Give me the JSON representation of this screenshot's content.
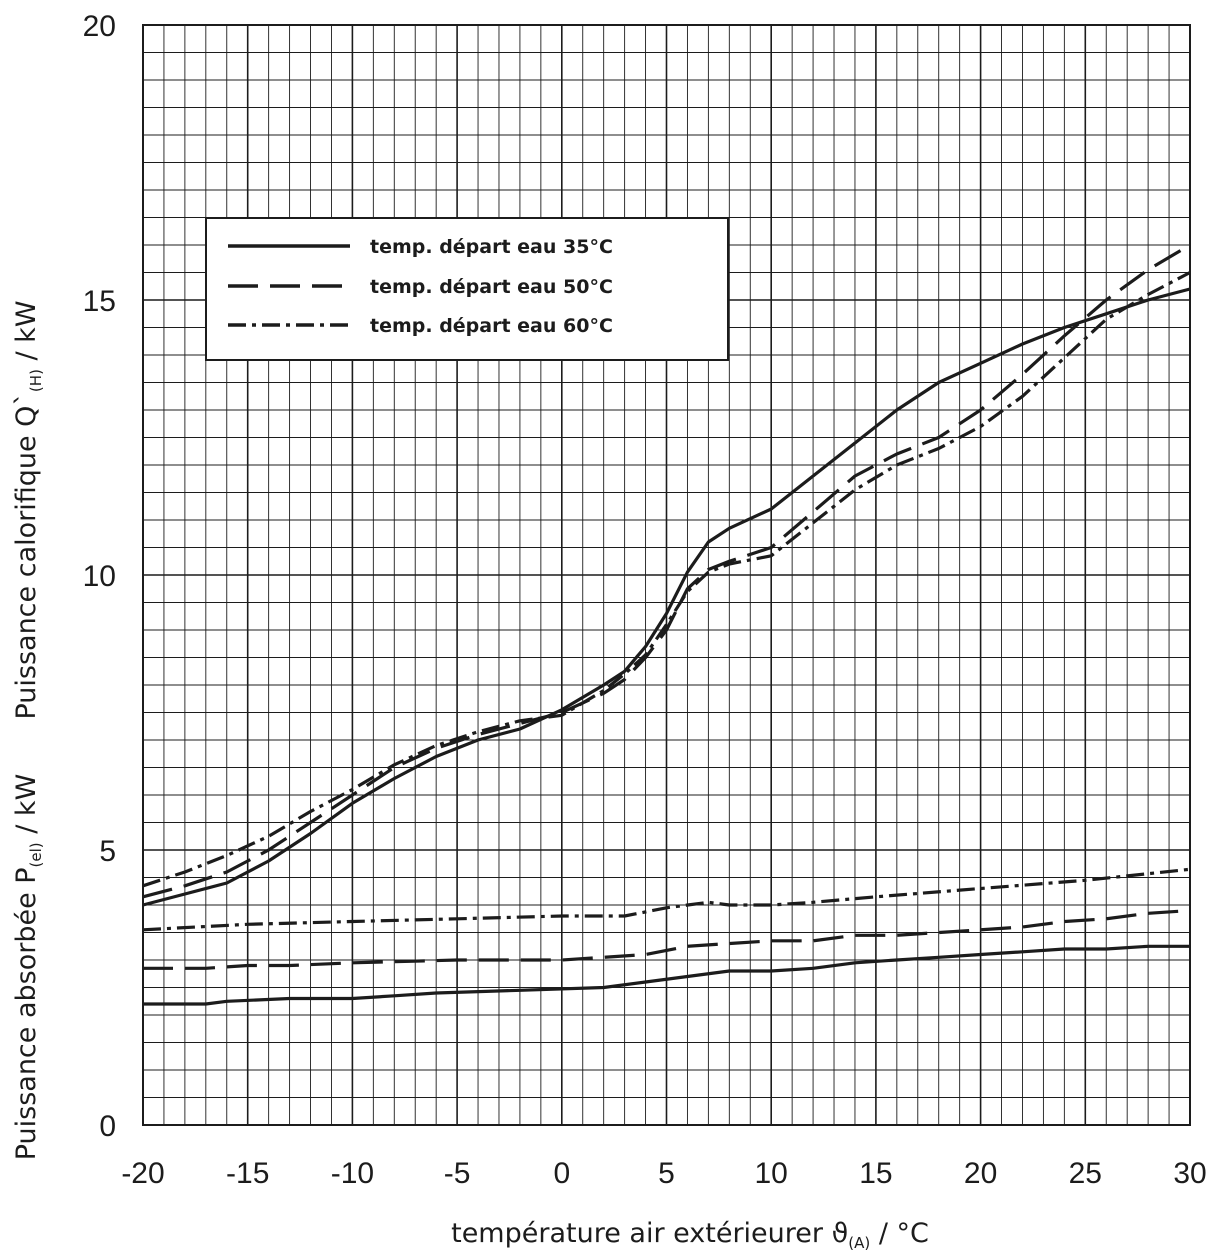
{
  "chart_data": {
    "type": "line",
    "xlabel": {
      "main": "température air extérieurer ϑ",
      "sub": "(A)",
      "unit": " / °C"
    },
    "ylabel_top": {
      "main": "Puissance calorifique  Q`",
      "sub": "(H)",
      "unit": "  / kW"
    },
    "ylabel_bottom": {
      "main": "Puissance absorbée P",
      "sub": "(el)",
      "unit": "  / kW"
    },
    "xlim": [
      -20,
      30
    ],
    "ylim": [
      0,
      20
    ],
    "x_ticks": [
      "-20",
      "-15",
      "-10",
      "-5",
      "0",
      "5",
      "10",
      "15",
      "20",
      "25",
      "30"
    ],
    "y_ticks": [
      "0",
      "5",
      "10",
      "15",
      "20"
    ],
    "grid": true,
    "legend_position": "upper-left",
    "legend": [
      {
        "name": "temp. départ eau 35°C",
        "style": "solid"
      },
      {
        "name": "temp. départ eau 50°C",
        "style": "dashed"
      },
      {
        "name": "temp. départ eau 60°C",
        "style": "dashdot"
      }
    ],
    "series": [
      {
        "name": "temp. départ eau 35°C",
        "group": "heating",
        "style": "solid",
        "x": [
          -20,
          -18,
          -16,
          -14,
          -12,
          -10,
          -8,
          -6,
          -4,
          -2,
          0,
          2,
          3,
          4,
          5,
          6,
          7,
          8,
          10,
          12,
          14,
          16,
          18,
          20,
          22,
          24,
          26,
          28,
          30
        ],
        "y": [
          4.0,
          4.2,
          4.4,
          4.8,
          5.3,
          5.85,
          6.3,
          6.7,
          7.0,
          7.2,
          7.55,
          8.0,
          8.25,
          8.7,
          9.3,
          10.05,
          10.6,
          10.85,
          11.2,
          11.8,
          12.4,
          13.0,
          13.5,
          13.85,
          14.2,
          14.5,
          14.75,
          15.0,
          15.2
        ]
      },
      {
        "name": "temp. départ eau 50°C",
        "group": "heating",
        "style": "dashed",
        "x": [
          -20,
          -18,
          -16,
          -14,
          -12,
          -10,
          -8,
          -6,
          -4,
          -2,
          0,
          2,
          3,
          4,
          5,
          6,
          7,
          8,
          10,
          12,
          14,
          16,
          18,
          20,
          22,
          24,
          26,
          28,
          30
        ],
        "y": [
          4.15,
          4.35,
          4.6,
          5.0,
          5.5,
          6.0,
          6.5,
          6.85,
          7.1,
          7.3,
          7.5,
          7.85,
          8.1,
          8.5,
          9.0,
          9.75,
          10.1,
          10.25,
          10.5,
          11.15,
          11.8,
          12.2,
          12.5,
          13.0,
          13.65,
          14.35,
          15.0,
          15.55,
          16.0
        ]
      },
      {
        "name": "temp. départ eau 60°C",
        "group": "heating",
        "style": "dashdot",
        "x": [
          -20,
          -18,
          -16,
          -14,
          -12,
          -10,
          -8,
          -6,
          -4,
          -2,
          0,
          2,
          3,
          4,
          5,
          6,
          7,
          8,
          10,
          12,
          14,
          16,
          18,
          20,
          22,
          24,
          26,
          28,
          30
        ],
        "y": [
          4.35,
          4.6,
          4.9,
          5.25,
          5.7,
          6.1,
          6.55,
          6.9,
          7.15,
          7.35,
          7.45,
          7.9,
          8.2,
          8.55,
          9.1,
          9.7,
          10.05,
          10.2,
          10.35,
          10.95,
          11.55,
          12.0,
          12.3,
          12.7,
          13.25,
          13.95,
          14.65,
          15.1,
          15.5
        ]
      },
      {
        "name": "temp. départ eau 35°C",
        "group": "electrical",
        "style": "solid",
        "x": [
          -20,
          -17,
          -16,
          -13,
          -10,
          -8,
          -6,
          -2,
          2,
          4,
          6,
          8,
          10,
          12,
          14,
          16,
          18,
          20,
          22,
          24,
          26,
          28,
          30
        ],
        "y": [
          2.2,
          2.2,
          2.25,
          2.3,
          2.3,
          2.35,
          2.4,
          2.45,
          2.5,
          2.6,
          2.7,
          2.8,
          2.8,
          2.85,
          2.95,
          3.0,
          3.05,
          3.1,
          3.15,
          3.2,
          3.2,
          3.25,
          3.25
        ]
      },
      {
        "name": "temp. départ eau 50°C",
        "group": "electrical",
        "style": "dashed",
        "x": [
          -20,
          -17,
          -15,
          -13,
          -10,
          -5,
          0,
          2,
          4,
          6,
          8,
          10,
          12,
          14,
          16,
          18,
          20,
          22,
          24,
          26,
          28,
          30
        ],
        "y": [
          2.85,
          2.85,
          2.9,
          2.9,
          2.95,
          3.0,
          3.0,
          3.05,
          3.1,
          3.25,
          3.3,
          3.35,
          3.35,
          3.45,
          3.45,
          3.5,
          3.55,
          3.6,
          3.7,
          3.75,
          3.85,
          3.9
        ]
      },
      {
        "name": "temp. départ eau 60°C",
        "group": "electrical",
        "style": "dashdot",
        "x": [
          -20,
          -15,
          -10,
          -5,
          0,
          3,
          5,
          7,
          8,
          10,
          12,
          15,
          20,
          25,
          30
        ],
        "y": [
          3.55,
          3.65,
          3.7,
          3.75,
          3.8,
          3.8,
          3.95,
          4.05,
          4.0,
          4.0,
          4.05,
          4.15,
          4.3,
          4.45,
          4.65
        ]
      }
    ]
  }
}
